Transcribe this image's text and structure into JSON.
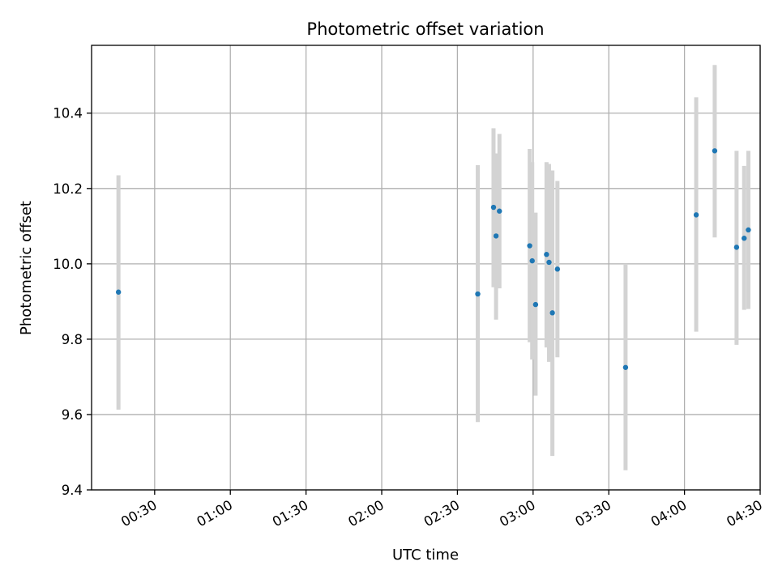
{
  "chart_data": {
    "type": "scatter",
    "title": "Photometric offset variation",
    "xlabel": "UTC time",
    "ylabel": "Photometric offset",
    "x_unit": "time (HH:MM UTC)",
    "xlim": [
      "00:05",
      "04:30"
    ],
    "ylim": [
      9.4,
      10.58
    ],
    "x_ticks": [
      "00:30",
      "01:00",
      "01:30",
      "02:00",
      "02:30",
      "03:00",
      "03:30",
      "04:00",
      "04:30"
    ],
    "y_ticks": [
      "9.4",
      "9.6",
      "9.8",
      "10.0",
      "10.2",
      "10.4"
    ],
    "grid": true,
    "marker_color": "#1f77b4",
    "errorbar_color": "#d3d3d3",
    "series": [
      {
        "points": [
          {
            "x": "00:15:39",
            "y": 9.925,
            "ylow": 9.613,
            "yhigh": 10.235
          },
          {
            "x": "02:38:04",
            "y": 9.92,
            "ylow": 9.58,
            "yhigh": 10.262
          },
          {
            "x": "02:44:19",
            "y": 10.15,
            "ylow": 9.938,
            "yhigh": 10.36
          },
          {
            "x": "02:45:19",
            "y": 10.074,
            "ylow": 9.852,
            "yhigh": 10.293
          },
          {
            "x": "02:46:39",
            "y": 10.14,
            "ylow": 9.935,
            "yhigh": 10.345
          },
          {
            "x": "02:58:39",
            "y": 10.048,
            "ylow": 9.792,
            "yhigh": 10.305
          },
          {
            "x": "02:59:39",
            "y": 10.008,
            "ylow": 9.746,
            "yhigh": 10.27
          },
          {
            "x": "03:00:59",
            "y": 9.892,
            "ylow": 9.65,
            "yhigh": 10.136
          },
          {
            "x": "03:05:19",
            "y": 10.025,
            "ylow": 9.778,
            "yhigh": 10.27
          },
          {
            "x": "03:06:19",
            "y": 10.004,
            "ylow": 9.74,
            "yhigh": 10.265
          },
          {
            "x": "03:07:39",
            "y": 9.87,
            "ylow": 9.49,
            "yhigh": 10.248
          },
          {
            "x": "03:09:39",
            "y": 9.986,
            "ylow": 9.752,
            "yhigh": 10.22
          },
          {
            "x": "03:36:39",
            "y": 9.725,
            "ylow": 9.452,
            "yhigh": 10.0
          },
          {
            "x": "04:04:39",
            "y": 10.13,
            "ylow": 9.82,
            "yhigh": 10.442
          },
          {
            "x": "04:11:59",
            "y": 10.3,
            "ylow": 10.07,
            "yhigh": 10.528
          },
          {
            "x": "04:20:39",
            "y": 10.044,
            "ylow": 9.785,
            "yhigh": 10.3
          },
          {
            "x": "04:23:39",
            "y": 10.068,
            "ylow": 9.878,
            "yhigh": 10.26
          },
          {
            "x": "04:25:19",
            "y": 10.09,
            "ylow": 9.88,
            "yhigh": 10.3
          }
        ]
      }
    ]
  }
}
